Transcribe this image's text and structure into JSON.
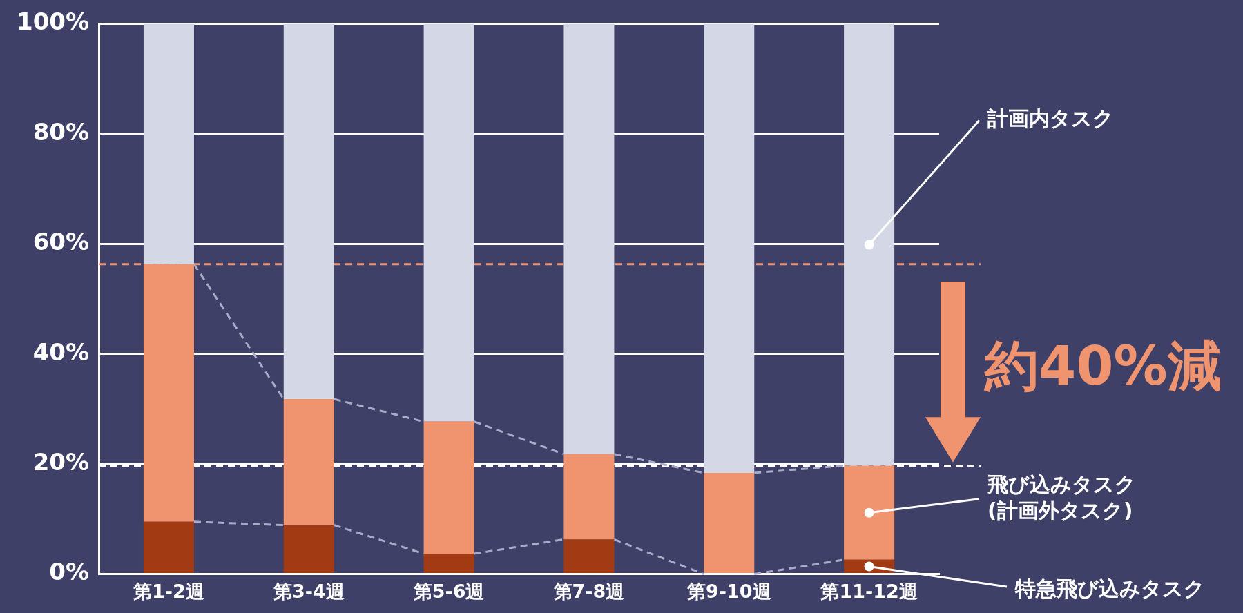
{
  "chart_data": {
    "type": "bar",
    "stacked": true,
    "categories": [
      "第1-2週",
      "第3-4週",
      "第5-6週",
      "第7-8週",
      "第9-10週",
      "第11-12週"
    ],
    "series": [
      {
        "name": "特急飛び込みタスク",
        "color": "#a23b14",
        "values": [
          9.5,
          8.9,
          3.7,
          6.3,
          0,
          2.6
        ]
      },
      {
        "name": "飛び込みタスク\n(計画外タスク)",
        "color": "#f09470",
        "values": [
          46.8,
          22.9,
          24.0,
          15.5,
          18.4,
          17.1
        ]
      },
      {
        "name": "計画内タスク",
        "color": "#d4d7e5",
        "values": [
          43.7,
          68.2,
          72.3,
          78.2,
          81.6,
          80.3
        ]
      }
    ],
    "ylim": [
      0,
      100
    ],
    "yticks": [
      {
        "value": 0,
        "label": "0%"
      },
      {
        "value": 20,
        "label": "20%"
      },
      {
        "value": 40,
        "label": "40%"
      },
      {
        "value": 60,
        "label": "60%"
      },
      {
        "value": 80,
        "label": "80%"
      },
      {
        "value": 100,
        "label": "100%"
      }
    ],
    "grid": "y",
    "legend": false,
    "ref_lines": [
      {
        "axis": "y",
        "value": 56.3,
        "label": null,
        "color": "#f09470",
        "line_style": "dashed"
      },
      {
        "axis": "y",
        "value": 19.7,
        "label": null,
        "color": "#ffffff",
        "line_style": "dashed"
      }
    ],
    "annotations": [
      "約40%減"
    ]
  }
}
